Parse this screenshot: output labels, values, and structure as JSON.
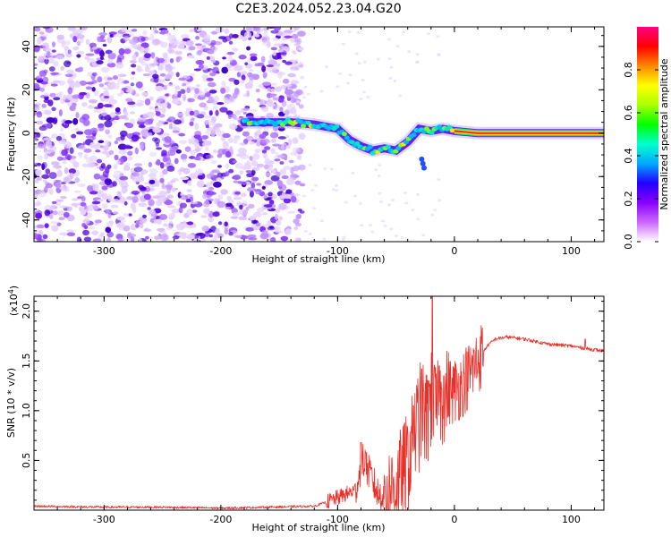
{
  "title": "C2E3.2024.052.23.04.G20",
  "chart_data": [
    {
      "type": "heatmap",
      "xlabel": "Height of straight line (km)",
      "ylabel": "Frequency (Hz)",
      "xlim": [
        -360,
        128
      ],
      "ylim": [
        -50,
        49
      ],
      "x_ticks": [
        -300,
        -200,
        -100,
        0,
        100
      ],
      "y_ticks": [
        -40,
        -20,
        0,
        20,
        40
      ],
      "colorbar": {
        "label": "Normalized spectral amplitude",
        "range": [
          0,
          1
        ],
        "ticks": [
          0.0,
          0.2,
          0.4,
          0.6,
          0.8
        ],
        "colors": [
          "#ffffff",
          "#cc66ff",
          "#8800ff",
          "#2200ff",
          "#00aaff",
          "#00ffcc",
          "#00ff00",
          "#aaff00",
          "#ffff00",
          "#ff8800",
          "#ff0000",
          "#ff0088"
        ]
      },
      "ridge": [
        {
          "x": -180,
          "y": 5
        },
        {
          "x": -160,
          "y": 5
        },
        {
          "x": -140,
          "y": 5
        },
        {
          "x": -120,
          "y": 4
        },
        {
          "x": -110,
          "y": 3
        },
        {
          "x": -100,
          "y": 2
        },
        {
          "x": -90,
          "y": -3
        },
        {
          "x": -80,
          "y": -6
        },
        {
          "x": -70,
          "y": -8
        },
        {
          "x": -60,
          "y": -7
        },
        {
          "x": -50,
          "y": -8
        },
        {
          "x": -40,
          "y": -4
        },
        {
          "x": -30,
          "y": 2
        },
        {
          "x": -20,
          "y": 1
        },
        {
          "x": -10,
          "y": 2
        },
        {
          "x": 0,
          "y": 1
        },
        {
          "x": 20,
          "y": 0
        },
        {
          "x": 60,
          "y": 0
        },
        {
          "x": 100,
          "y": 0
        },
        {
          "x": 128,
          "y": 0
        }
      ]
    },
    {
      "type": "line",
      "xlabel": "Height of straight line (km)",
      "ylabel": "SNR (10 * v/v)",
      "y_multiplier_label": "(x10",
      "y_multiplier_exp": "4",
      "y_multiplier_close": ")",
      "xlim": [
        -360,
        128
      ],
      "ylim": [
        0,
        2.15
      ],
      "x_ticks": [
        -300,
        -200,
        -100,
        0,
        100
      ],
      "y_ticks": [
        0.5,
        1.0,
        1.5,
        2.0
      ],
      "y_tick_labels": [
        "0.5",
        "1.0",
        "1.5",
        "2.0"
      ],
      "series": [
        {
          "color": "#e8302a",
          "points": [
            {
              "x": -360,
              "y": 0.04
            },
            {
              "x": -300,
              "y": 0.03
            },
            {
              "x": -250,
              "y": 0.03
            },
            {
              "x": -200,
              "y": 0.02
            },
            {
              "x": -160,
              "y": 0.03
            },
            {
              "x": -120,
              "y": 0.04
            },
            {
              "x": -105,
              "y": 0.1
            },
            {
              "x": -95,
              "y": 0.15
            },
            {
              "x": -85,
              "y": 0.2
            },
            {
              "x": -78,
              "y": 0.5
            },
            {
              "x": -72,
              "y": 0.35
            },
            {
              "x": -65,
              "y": 0.15
            },
            {
              "x": -55,
              "y": 0.2
            },
            {
              "x": -45,
              "y": 0.35
            },
            {
              "x": -38,
              "y": 0.55
            },
            {
              "x": -32,
              "y": 0.85
            },
            {
              "x": -28,
              "y": 1.0
            },
            {
              "x": -24,
              "y": 0.9
            },
            {
              "x": -20,
              "y": 1.1
            },
            {
              "x": -15,
              "y": 1.0
            },
            {
              "x": -10,
              "y": 1.1
            },
            {
              "x": -5,
              "y": 1.2
            },
            {
              "x": 0,
              "y": 1.2
            },
            {
              "x": 5,
              "y": 1.25
            },
            {
              "x": 12,
              "y": 1.35
            },
            {
              "x": 20,
              "y": 1.5
            },
            {
              "x": 28,
              "y": 1.65
            },
            {
              "x": 35,
              "y": 1.72
            },
            {
              "x": 45,
              "y": 1.74
            },
            {
              "x": 60,
              "y": 1.72
            },
            {
              "x": 80,
              "y": 1.67
            },
            {
              "x": 100,
              "y": 1.65
            },
            {
              "x": 115,
              "y": 1.62
            },
            {
              "x": 128,
              "y": 1.6
            }
          ]
        }
      ],
      "spikes": [
        {
          "x": -80,
          "y": 0.68
        },
        {
          "x": -76,
          "y": 0.58
        },
        {
          "x": -35,
          "y": 1.05
        },
        {
          "x": -28,
          "y": 1.42
        },
        {
          "x": -22,
          "y": 1.3
        },
        {
          "x": -19,
          "y": 2.15
        },
        {
          "x": -13,
          "y": 1.45
        },
        {
          "x": -9,
          "y": 1.35
        },
        {
          "x": 112,
          "y": 1.72
        }
      ]
    }
  ]
}
